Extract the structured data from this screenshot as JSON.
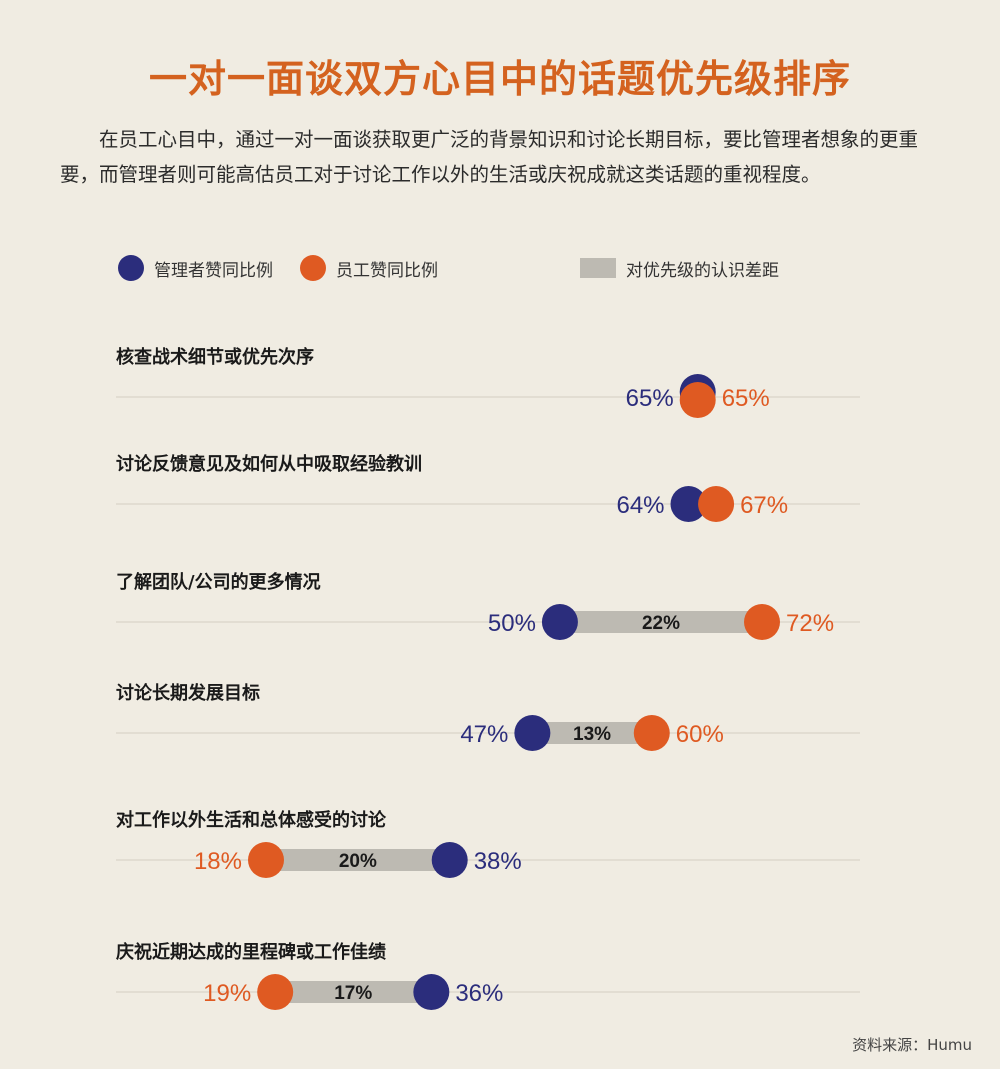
{
  "title": "一对一面谈双方心目中的话题优先级排序",
  "subtitle": "在员工心目中，通过一对一面谈获取更广泛的背景知识和讨论长期目标，要比管理者想象的更重要，而管理者则可能高估员工对于讨论工作以外的生活或庆祝成就这类话题的重视程度。",
  "legend": {
    "manager": "管理者赞同比例",
    "employee": "员工赞同比例",
    "gap": "对优先级的认识差距"
  },
  "colors": {
    "manager": "#2b2d7c",
    "employee": "#df5a22",
    "gap": "#bdbab2",
    "title": "#d4621f",
    "background": "#f0ece2"
  },
  "source": "资料来源：Humu",
  "chart_data": {
    "type": "dumbbell",
    "unit": "%",
    "categories": [
      "核查战术细节或优先次序",
      "讨论反馈意见及如何从中吸取经验教训",
      "了解团队/公司的更多情况",
      "讨论长期发展目标",
      "对工作以外生活和总体感受的讨论",
      "庆祝近期达成的里程碑或工作佳绩"
    ],
    "series": [
      {
        "name": "管理者赞同比例",
        "values": [
          65,
          64,
          50,
          47,
          38,
          36
        ]
      },
      {
        "name": "员工赞同比例",
        "values": [
          65,
          67,
          72,
          60,
          18,
          19
        ]
      }
    ],
    "gap_labels": [
      "",
      "",
      "22%",
      "13%",
      "20%",
      "17%"
    ]
  }
}
